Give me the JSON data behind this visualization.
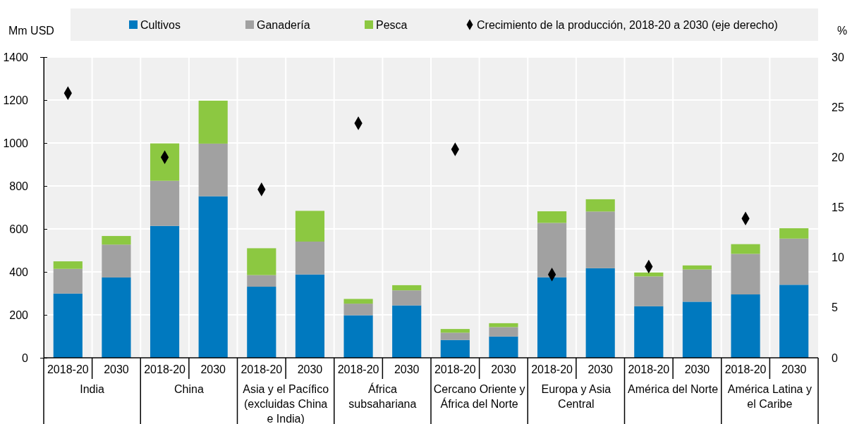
{
  "chart_data": {
    "type": "bar",
    "stacked": true,
    "ylabel": "Mm USD",
    "y2label": "%",
    "categories": [
      "2018-20",
      "2030",
      "2018-20",
      "2030",
      "2018-20",
      "2030",
      "2018-20",
      "2030",
      "2018-20",
      "2030",
      "2018-20",
      "2030",
      "2018-20",
      "2030",
      "2018-20",
      "2030"
    ],
    "annotations": [
      "India",
      "China",
      "Asia y el Pacífico (excluidas China e India)",
      "África subsahariana",
      "Cercano Oriente y África del Norte",
      "Europa y Asia Central",
      "América del Norte",
      "América Latina y el Caribe"
    ],
    "series": [
      {
        "name": "Cultivos",
        "color": "#0079bf",
        "values": [
          299,
          374,
          614,
          752,
          331,
          388,
          198,
          244,
          83,
          99,
          375,
          417,
          240,
          261,
          295,
          340
        ]
      },
      {
        "name": "Ganadería",
        "color": "#a1a1a1",
        "values": [
          115,
          153,
          210,
          245,
          54,
          153,
          54,
          70,
          34,
          44,
          253,
          264,
          139,
          150,
          189,
          215
        ]
      },
      {
        "name": "Pesca",
        "color": "#8cc841",
        "values": [
          35,
          40,
          174,
          200,
          125,
          143,
          22,
          24,
          17,
          18,
          54,
          57,
          18,
          19,
          45,
          48
        ]
      },
      {
        "name": "Crecimiento de la producción, 2018-20 a 2030 (eje derecho)",
        "type": "scatter",
        "axis": "y2",
        "marker": "diamond",
        "color": "#000000",
        "values": [
          26.4,
          null,
          20.0,
          null,
          16.8,
          null,
          23.4,
          null,
          20.8,
          null,
          8.3,
          null,
          9.1,
          null,
          13.9,
          null
        ]
      }
    ],
    "ylim": [
      0,
      1400
    ],
    "yticks": [
      0,
      200,
      400,
      600,
      800,
      1000,
      1200,
      1400
    ],
    "y2lim": [
      0,
      30
    ],
    "y2ticks": [
      0,
      5,
      10,
      15,
      20,
      25,
      30
    ],
    "grid": true,
    "legend": "top"
  }
}
